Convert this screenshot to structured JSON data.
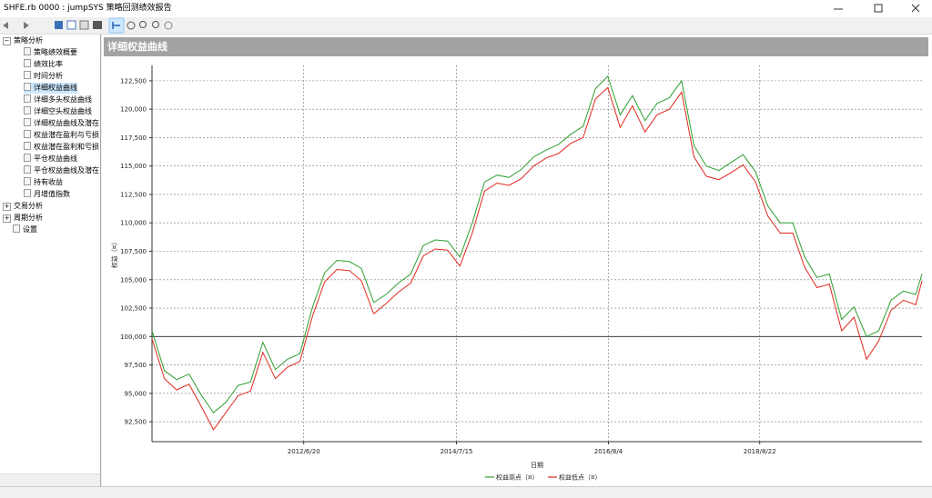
{
  "window": {
    "title": "SHFE.rb 0000 : jumpSYS 策略回测绩效报告"
  },
  "tree": {
    "groups": [
      {
        "label": "策略分析",
        "items": [
          "策略绩效概要",
          "绩效比率",
          "时间分析",
          "详细权益曲线",
          "详细多头权益曲线",
          "详细空头权益曲线",
          "详细权益曲线及潜在",
          "权益潜在盈利与亏损",
          "权益潜在盈利和亏损",
          "平仓权益曲线",
          "平仓权益曲线及潜在",
          "持有收益",
          "月增值指数"
        ]
      },
      {
        "label": "交易分析",
        "items": []
      },
      {
        "label": "周期分析",
        "items": []
      }
    ],
    "leaf": "设置",
    "selected": 3
  },
  "panel": {
    "title": "详细权益曲线"
  },
  "chart_data": {
    "type": "line",
    "ylabel": "权益（¤）",
    "xlabel": "日期",
    "x": [
      "2010/06/01",
      "2010/08/01",
      "2010/10/01",
      "2010/12/01",
      "2011/02/01",
      "2011/04/01",
      "2011/06/01",
      "2011/08/01",
      "2011/10/01",
      "2011/12/01",
      "2012/02/01",
      "2012/04/01",
      "2012/06/01",
      "2012/08/01",
      "2012/10/01",
      "2012/12/01",
      "2013/02/01",
      "2013/04/01",
      "2013/06/01",
      "2013/08/01",
      "2013/10/01",
      "2013/12/01",
      "2014/02/01",
      "2014/04/01",
      "2014/06/01",
      "2014/08/01",
      "2014/10/01",
      "2014/12/01",
      "2015/02/01",
      "2015/04/01",
      "2015/06/01",
      "2015/08/01",
      "2015/10/01",
      "2015/12/01",
      "2016/02/01",
      "2016/04/01",
      "2016/06/01",
      "2016/08/01",
      "2016/10/01",
      "2016/12/01",
      "2017/02/01",
      "2017/04/01",
      "2017/06/01",
      "2017/08/01",
      "2017/10/01",
      "2017/12/01",
      "2018/02/01",
      "2018/04/01",
      "2018/06/01",
      "2018/08/01",
      "2018/10/01",
      "2018/12/01",
      "2019/02/01",
      "2019/04/01",
      "2019/06/01",
      "2019/08/01",
      "2019/10/01",
      "2019/12/01",
      "2020/02/01",
      "2020/04/01",
      "2020/06/01",
      "2020/08/01",
      "2020/10/01",
      "2020/11/01"
    ],
    "series": [
      {
        "name": "权益高点（¤）",
        "color": "#2e9e2e",
        "values": [
          100500,
          97000,
          96200,
          96700,
          94800,
          93300,
          94200,
          95700,
          96000,
          99500,
          97100,
          98000,
          98500,
          102500,
          105600,
          106700,
          106600,
          106000,
          103000,
          103700,
          104700,
          105500,
          108000,
          108500,
          108400,
          107000,
          110000,
          113600,
          114200,
          114000,
          114700,
          115800,
          116400,
          116900,
          117800,
          118500,
          121800,
          122900,
          119500,
          121200,
          119000,
          120500,
          121000,
          122500,
          116800,
          115000,
          114600,
          115300,
          116000,
          114500,
          111500,
          110000,
          110000,
          107000,
          105200,
          105500,
          101500,
          102600,
          100000,
          100500,
          103200,
          104000,
          103700,
          105500
        ]
      },
      {
        "name": "权益低点（¤）",
        "color": "#e0281e",
        "values": [
          99800,
          96300,
          95300,
          95800,
          93800,
          91800,
          93300,
          94800,
          95200,
          98600,
          96300,
          97300,
          97800,
          101700,
          104800,
          105900,
          105800,
          104900,
          102000,
          102900,
          103900,
          104700,
          107100,
          107700,
          107600,
          106200,
          109100,
          112800,
          113500,
          113300,
          113900,
          115000,
          115700,
          116100,
          117000,
          117500,
          120900,
          121900,
          118400,
          120300,
          118000,
          119500,
          120000,
          121500,
          115800,
          114100,
          113800,
          114400,
          115100,
          113600,
          110600,
          109100,
          109100,
          106100,
          104300,
          104600,
          100500,
          101700,
          98000,
          99600,
          102300,
          103200,
          102800,
          104900
        ]
      }
    ],
    "xlim": [
      "2010/06/01",
      "2020/11/01"
    ],
    "xticks": [
      "2012/6/20",
      "2014/7/15",
      "2016/8/4",
      "2018/8/22"
    ],
    "ylim": [
      90750,
      123850
    ],
    "yticks": [
      {
        "value": 92500,
        "label": "92,500"
      },
      {
        "value": 95000,
        "label": "95,000"
      },
      {
        "value": 97500,
        "label": "97,500"
      },
      {
        "value": 100000,
        "label": "100,000"
      },
      {
        "value": 102500,
        "label": "102,500"
      },
      {
        "value": 105000,
        "label": "105,000"
      },
      {
        "value": 107500,
        "label": "107,500"
      },
      {
        "value": 110000,
        "label": "110,000"
      },
      {
        "value": 112500,
        "label": "112,500"
      },
      {
        "value": 115000,
        "label": "115,000"
      },
      {
        "value": 117500,
        "label": "117,500"
      },
      {
        "value": 120000,
        "label": "120,000"
      },
      {
        "value": 122500,
        "label": "122,500"
      }
    ],
    "reference_line": 100000,
    "grid": true,
    "legend": "bottom"
  }
}
